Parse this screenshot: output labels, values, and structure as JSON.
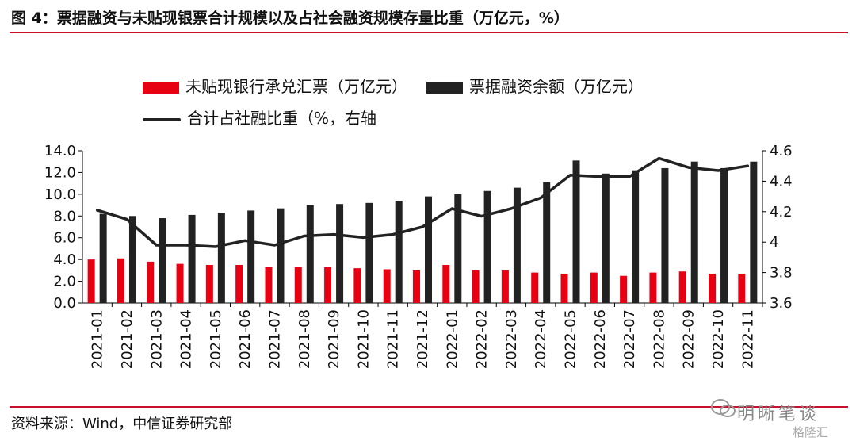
{
  "figure": {
    "title": "图 4：票据融资与未贴现银票合计规模以及占社会融资规模存量比重（万亿元，%）",
    "source": "资料来源：Wind，中信证券研究部",
    "watermark": "明晰笔谈",
    "watermark_sub": "格隆汇"
  },
  "chart_data": {
    "type": "bar",
    "title": "图 4：票据融资与未贴现银票合计规模以及占社会融资规模存量比重（万亿元，%）",
    "categories": [
      "2021-01",
      "2021-02",
      "2021-03",
      "2021-04",
      "2021-05",
      "2021-06",
      "2021-07",
      "2021-08",
      "2021-09",
      "2021-10",
      "2021-11",
      "2021-12",
      "2022-01",
      "2022-02",
      "2022-03",
      "2022-04",
      "2022-05",
      "2022-06",
      "2022-07",
      "2022-08",
      "2022-09",
      "2022-10",
      "2022-11"
    ],
    "series": [
      {
        "name": "未贴现银行承兑汇票（万亿元）",
        "kind": "bar",
        "axis": "left",
        "color": "#e60012",
        "values": [
          4.0,
          4.1,
          3.8,
          3.6,
          3.5,
          3.5,
          3.3,
          3.3,
          3.3,
          3.2,
          3.1,
          3.0,
          3.5,
          3.0,
          3.0,
          2.8,
          2.7,
          2.8,
          2.5,
          2.8,
          2.9,
          2.7,
          2.7
        ]
      },
      {
        "name": "票据融资余额（万亿元）",
        "kind": "bar",
        "axis": "left",
        "color": "#222222",
        "values": [
          8.2,
          8.0,
          7.8,
          8.1,
          8.3,
          8.5,
          8.7,
          9.0,
          9.1,
          9.2,
          9.4,
          9.8,
          10.0,
          10.3,
          10.6,
          11.1,
          13.1,
          11.9,
          12.2,
          12.4,
          13.0,
          12.4,
          13.0
        ]
      },
      {
        "name": "合计占社融比重（%，右轴",
        "kind": "line",
        "axis": "right",
        "color": "#222222",
        "values": [
          4.21,
          4.15,
          3.98,
          3.98,
          3.97,
          4.01,
          3.98,
          4.04,
          4.05,
          4.03,
          4.05,
          4.1,
          4.22,
          4.17,
          4.22,
          4.29,
          4.44,
          4.43,
          4.43,
          4.55,
          4.49,
          4.47,
          4.5
        ]
      }
    ],
    "y_left": {
      "ylim": [
        0,
        14
      ],
      "ticks": [
        "0.0",
        "2.0",
        "4.0",
        "6.0",
        "8.0",
        "10.0",
        "12.0",
        "14.0"
      ]
    },
    "y_right": {
      "ylim": [
        3.6,
        4.6
      ],
      "ticks": [
        "3.6",
        "3.8",
        "4",
        "4.2",
        "4.4",
        "4.6"
      ]
    },
    "grid": false,
    "legend_position": "top"
  }
}
